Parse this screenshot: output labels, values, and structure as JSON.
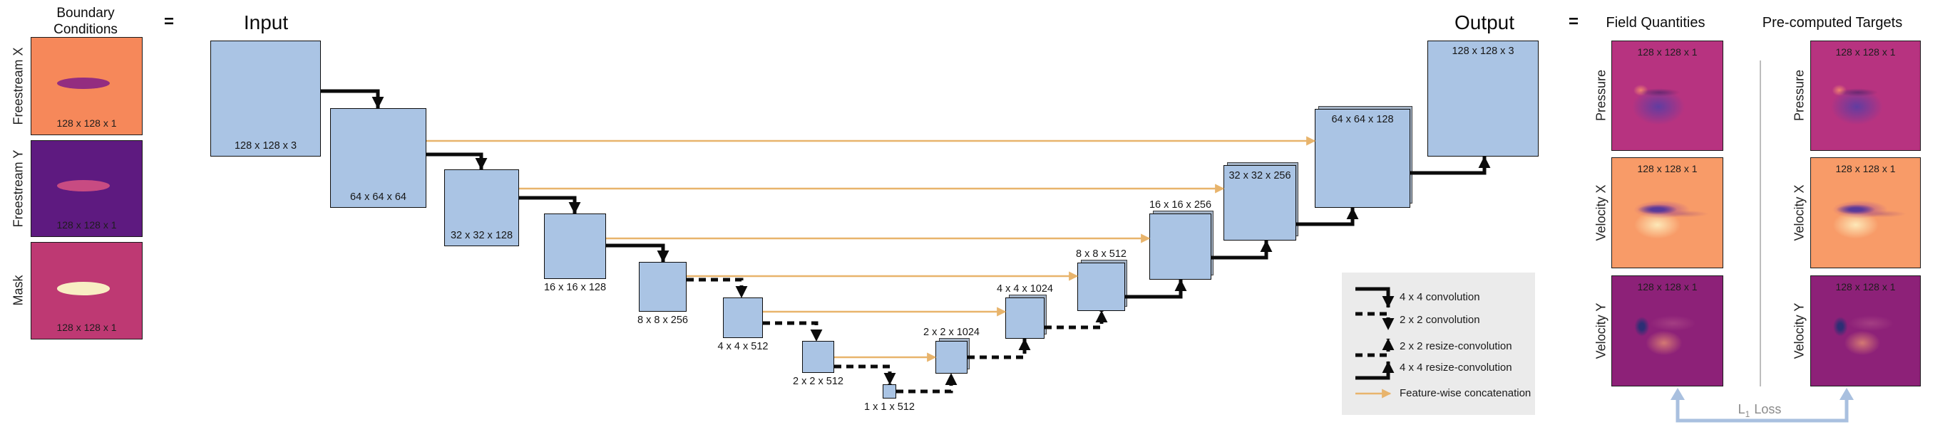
{
  "colors": {
    "block_fill": "#aac4e4",
    "concat": "#e8b46c",
    "legend_bg": "#ebebeb",
    "loss": "#a9c0df",
    "pressure_bg": "#b73380",
    "velocity_x_bg": "#f89b68",
    "velocity_y_bg": "#8d2178",
    "freestream_x_bg": "#f6885a",
    "freestream_x_foil": "#932d80",
    "freestream_y_bg": "#5e1a80",
    "freestream_y_foil": "#c84b82",
    "mask_bg": "#be3973",
    "mask_foil": "#f8eec3"
  },
  "boundary": {
    "title_line1": "Boundary",
    "title_line2": "Conditions",
    "equals": "=",
    "items": [
      {
        "label": "Freestream X",
        "caption": "128 x 128 x 1"
      },
      {
        "label": "Freestream Y",
        "caption": "128 x 128 x 1"
      },
      {
        "label": "Mask",
        "caption": "128 x 128 x 1"
      }
    ]
  },
  "unet": {
    "input_title": "Input",
    "output_title": "Output",
    "blocks": [
      {
        "id": "input",
        "label": "128 x 128 x 3"
      },
      {
        "id": "e64",
        "label": "64 x 64 x 64"
      },
      {
        "id": "e32",
        "label": "32 x 32 x 128"
      },
      {
        "id": "e16",
        "label": "16 x 16 x 128"
      },
      {
        "id": "e8",
        "label": "8 x 8 x 256"
      },
      {
        "id": "e4",
        "label": "4 x 4 x 512"
      },
      {
        "id": "e2",
        "label": "2 x 2 x 512"
      },
      {
        "id": "e1",
        "label": "1 x 1 x 512"
      },
      {
        "id": "d2",
        "label": "2 x 2 x 1024"
      },
      {
        "id": "d4",
        "label": "4 x 4 x 1024"
      },
      {
        "id": "d8",
        "label": "8 x 8 x 512"
      },
      {
        "id": "d16",
        "label": "16 x 16 x 256"
      },
      {
        "id": "d32",
        "label": "32 x 32 x 256"
      },
      {
        "id": "d64",
        "label": "64 x 64 x 128"
      },
      {
        "id": "output",
        "label": "128 x 128 x 3"
      }
    ]
  },
  "legend": {
    "items": [
      {
        "label": "4 x 4 convolution",
        "type": "solid-down"
      },
      {
        "label": "2 x 2 convolution",
        "type": "dashed-down"
      },
      {
        "label": "2 x 2 resize-convolution",
        "type": "dashed-up"
      },
      {
        "label": "4 x 4 resize-convolution",
        "type": "solid-up"
      },
      {
        "label": "Feature-wise concatenation",
        "type": "orange-arrow"
      }
    ]
  },
  "results": {
    "equals": "=",
    "col1_title": "Field Quantities",
    "col2_title": "Pre-computed Targets",
    "rows": [
      {
        "label": "Pressure",
        "caption": "128 x 128 x 1"
      },
      {
        "label": "Velocity X",
        "caption": "128 x 128 x 1"
      },
      {
        "label": "Velocity Y",
        "caption": "128 x 128 x 1"
      }
    ],
    "loss": {
      "prefix": "L",
      "sub": "1",
      "suffix": "Loss"
    }
  }
}
